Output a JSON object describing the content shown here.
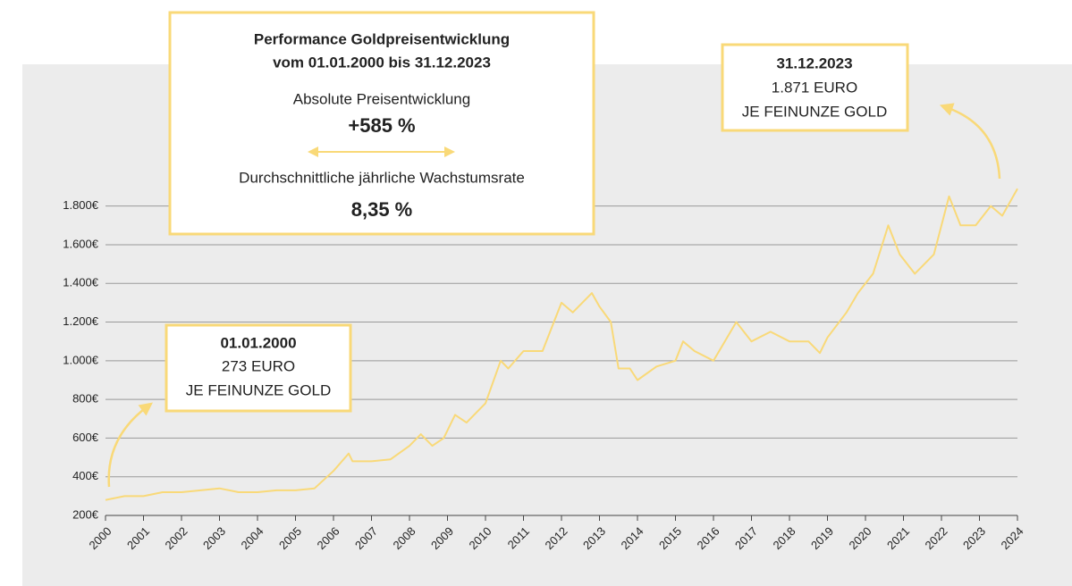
{
  "chart_data": {
    "type": "line",
    "title": [
      "Performance Goldpreisentwicklung",
      "vom 01.01.2000 bis 31.12.2023"
    ],
    "stats": [
      {
        "label": "Absolute Preisentwicklung",
        "value": "+585 %"
      },
      {
        "label": "Durchschnittliche jährliche Wachstumsrate",
        "value": "8,35 %"
      }
    ],
    "annotations": [
      {
        "date": "01.01.2000",
        "price": "273 EURO",
        "unit": "JE FEINUNZE GOLD"
      },
      {
        "date": "31.12.2023",
        "price": "1.871 EURO",
        "unit": "JE FEINUNZE GOLD"
      }
    ],
    "color": "#f9d978",
    "x": [
      2000,
      2000.5,
      2001,
      2001.5,
      2002,
      2002.5,
      2003,
      2003.5,
      2004,
      2004.5,
      2005,
      2005.5,
      2006,
      2006.4,
      2006.5,
      2007,
      2007.5,
      2008,
      2008.3,
      2008.6,
      2008.9,
      2009.2,
      2009.5,
      2010,
      2010.4,
      2010.6,
      2011,
      2011.5,
      2011.8,
      2012,
      2012.3,
      2012.8,
      2013,
      2013.3,
      2013.5,
      2013.8,
      2014,
      2014.5,
      2015,
      2015.2,
      2015.5,
      2016,
      2016.3,
      2016.6,
      2017,
      2017.5,
      2018,
      2018.5,
      2018.8,
      2019,
      2019.5,
      2019.8,
      2020.2,
      2020.6,
      2020.9,
      2021.3,
      2021.8,
      2022.2,
      2022.5,
      2022.9,
      2023.3,
      2023.6,
      2024
    ],
    "values": [
      280,
      300,
      300,
      320,
      320,
      330,
      340,
      320,
      320,
      330,
      330,
      340,
      430,
      520,
      480,
      480,
      490,
      560,
      620,
      560,
      600,
      720,
      680,
      780,
      1000,
      960,
      1050,
      1050,
      1200,
      1300,
      1250,
      1350,
      1280,
      1200,
      960,
      960,
      900,
      970,
      1000,
      1100,
      1050,
      1000,
      1100,
      1200,
      1100,
      1150,
      1100,
      1100,
      1040,
      1120,
      1250,
      1350,
      1450,
      1700,
      1550,
      1450,
      1550,
      1850,
      1700,
      1700,
      1800,
      1750,
      1890
    ],
    "xlim": [
      2000,
      2024
    ],
    "xticks": [
      2000,
      2001,
      2002,
      2003,
      2004,
      2005,
      2006,
      2007,
      2008,
      2009,
      2010,
      2011,
      2012,
      2013,
      2014,
      2015,
      2016,
      2017,
      2018,
      2019,
      2020,
      2021,
      2022,
      2023,
      2024
    ],
    "ylim": [
      200,
      1900
    ],
    "yticks": [
      {
        "value": 200,
        "label": "200€"
      },
      {
        "value": 400,
        "label": "400€"
      },
      {
        "value": 600,
        "label": "600€"
      },
      {
        "value": 800,
        "label": "800€"
      },
      {
        "value": 1000,
        "label": "1.000€"
      },
      {
        "value": 1200,
        "label": "1.200€"
      },
      {
        "value": 1400,
        "label": "1.400€"
      },
      {
        "value": 1600,
        "label": "1.600€"
      },
      {
        "value": 1800,
        "label": "1.800€"
      }
    ],
    "grid": true
  }
}
